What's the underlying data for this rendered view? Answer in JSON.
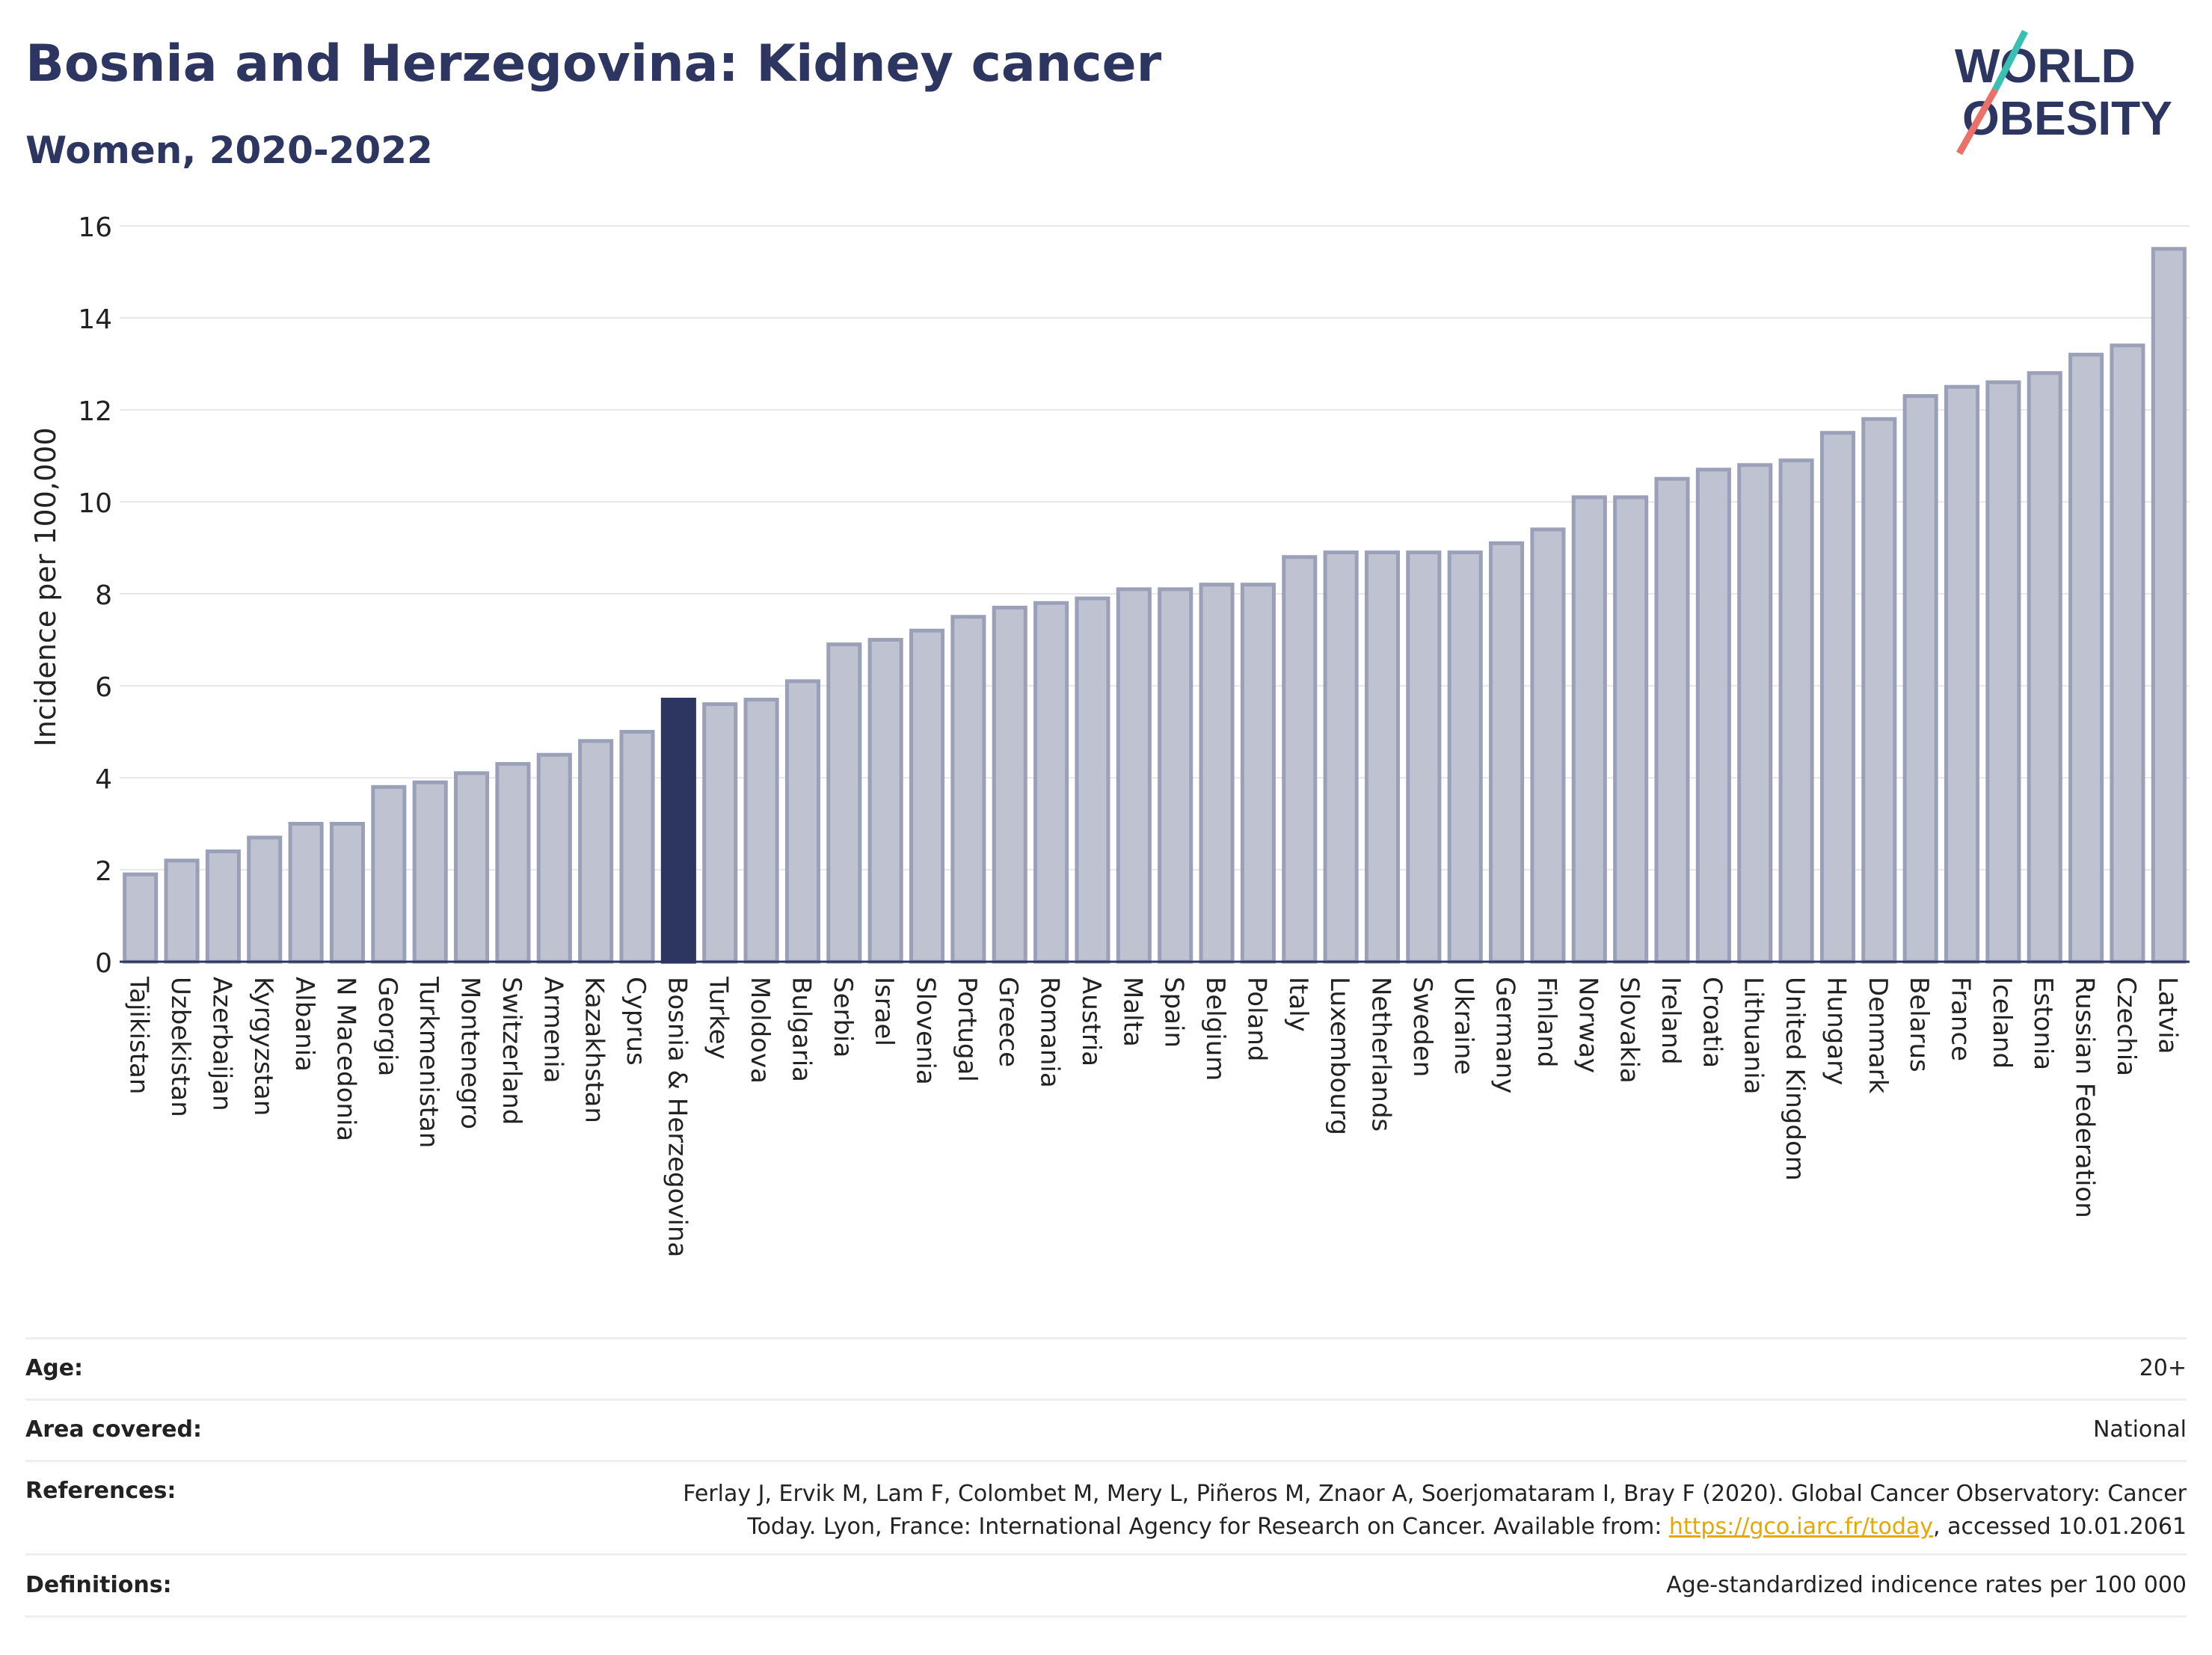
{
  "title": "Bosnia and Herzegovina: Kidney cancer",
  "subtitle": "Women, 2020-2022",
  "logo": {
    "line1": "WORLD",
    "line2": "OBESITY"
  },
  "colors": {
    "bar": "#bfc3d1",
    "bar_edge": "#9aa0b8",
    "highlight": "#2d3561",
    "grid": "#e6e8ee",
    "axis": "#2d3561",
    "link": "#e6a700"
  },
  "chart_data": {
    "type": "bar",
    "title": "Bosnia and Herzegovina: Kidney cancer",
    "ylabel": "Incidence per 100,000",
    "ylim": [
      0,
      16
    ],
    "yticks": [
      0,
      2,
      4,
      6,
      8,
      10,
      12,
      14,
      16
    ],
    "grid": true,
    "highlight": "Bosnia & Herzegovina",
    "categories": [
      "Tajikistan",
      "Uzbekistan",
      "Azerbaijan",
      "Kyrgyzstan",
      "Albania",
      "N Macedonia",
      "Georgia",
      "Turkmenistan",
      "Montenegro",
      "Switzerland",
      "Armenia",
      "Kazakhstan",
      "Cyprus",
      "Bosnia & Herzegovina",
      "Turkey",
      "Moldova",
      "Bulgaria",
      "Serbia",
      "Israel",
      "Slovenia",
      "Portugal",
      "Greece",
      "Romania",
      "Austria",
      "Malta",
      "Spain",
      "Belgium",
      "Poland",
      "Italy",
      "Luxembourg",
      "Netherlands",
      "Sweden",
      "Ukraine",
      "Germany",
      "Finland",
      "Norway",
      "Slovakia",
      "Ireland",
      "Croatia",
      "Lithuania",
      "United Kingdom",
      "Hungary",
      "Denmark",
      "Belarus",
      "France",
      "Iceland",
      "Estonia",
      "Russian Federation",
      "Czechia",
      "Latvia"
    ],
    "values": [
      1.9,
      2.2,
      2.4,
      2.7,
      3.0,
      3.0,
      3.8,
      3.9,
      4.1,
      4.3,
      4.5,
      4.8,
      5.0,
      5.7,
      5.6,
      5.7,
      6.1,
      6.9,
      7.0,
      7.2,
      7.5,
      7.7,
      7.8,
      7.9,
      8.1,
      8.1,
      8.2,
      8.2,
      8.8,
      8.9,
      8.9,
      8.9,
      8.9,
      9.1,
      9.4,
      10.1,
      10.1,
      10.5,
      10.7,
      10.8,
      10.9,
      11.5,
      11.8,
      12.3,
      12.5,
      12.6,
      12.8,
      13.2,
      13.4,
      15.5
    ]
  },
  "meta": {
    "age": {
      "label": "Age:",
      "value": "20+"
    },
    "area": {
      "label": "Area covered:",
      "value": "National"
    },
    "references": {
      "label": "References:",
      "line1": "Ferlay J, Ervik M, Lam F, Colombet M, Mery L, Piñeros M, Znaor A, Soerjomataram I, Bray F (2020). Global Cancer Observatory: Cancer",
      "line2_pre": "Today. Lyon, France: International Agency for Research on Cancer. Available from: ",
      "link": "https://gco.iarc.fr/today",
      "line2_post": ", accessed 10.01.2061"
    },
    "definitions": {
      "label": "Definitions:",
      "value": "Age-standardized indicence rates per 100 000"
    }
  }
}
